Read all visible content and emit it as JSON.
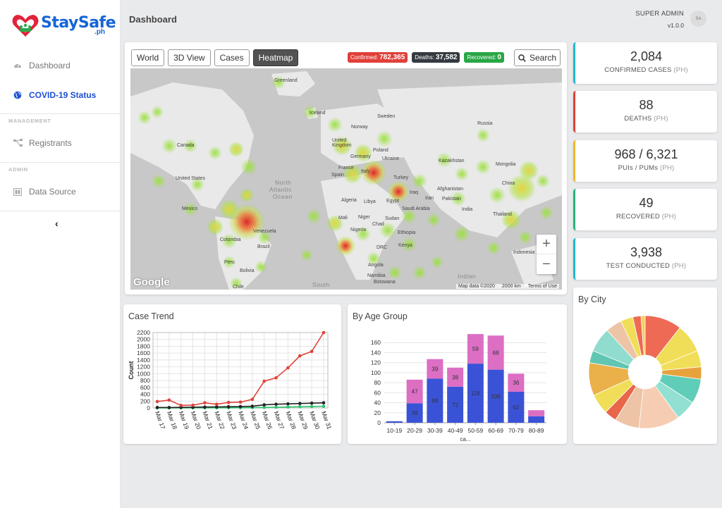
{
  "app": {
    "logo_text": "StaySafe",
    "logo_sub": ".ph",
    "page_title": "Dashboard",
    "user_name": "SUPER ADMIN",
    "version": "v1.0.0",
    "avatar_initials": "SA"
  },
  "sidebar": {
    "items": [
      {
        "label": "Dashboard",
        "icon": "speedometer-icon"
      },
      {
        "label": "COVID-19 Status",
        "icon": "globe-icon"
      }
    ],
    "section_management": "MANAGEMENT",
    "management_items": [
      {
        "label": "Registrants",
        "icon": "network-icon"
      }
    ],
    "section_admin": "ADMIN",
    "admin_items": [
      {
        "label": "Data Source",
        "icon": "database-icon"
      }
    ],
    "collapse_glyph": "‹"
  },
  "map": {
    "tabs": [
      "World",
      "3D View",
      "Cases",
      "Heatmap"
    ],
    "active_tab": "Heatmap",
    "badges": {
      "confirmed_label": "Confirmed:",
      "confirmed_value": "782,365",
      "deaths_label": "Deaths:",
      "deaths_value": "37,582",
      "recovered_label": "Recovered:",
      "recovered_value": "0"
    },
    "search_label": "Search",
    "zoom_in": "+",
    "zoom_out": "−",
    "google_logo": "Google",
    "attribution": "Map data ©2020",
    "scale": "2000 km",
    "terms": "Terms of Use",
    "labels": {
      "greenland": "Greenland",
      "iceland": "Iceland",
      "sweden": "Sweden",
      "norway": "Norway",
      "russia": "Russia",
      "uk": "United Kingdom",
      "poland": "Poland",
      "germany": "Germany",
      "ukraine": "Ukraine",
      "france": "France",
      "italy": "Italy",
      "spain": "Spain",
      "turkey": "Turkey",
      "kazakhstan": "Kazakhstan",
      "mongolia": "Mongolia",
      "canada": "Canada",
      "us": "United States",
      "north_atlantic_1": "North",
      "north_atlantic_2": "Atlantic",
      "north_atlantic_3": "Ocean",
      "china": "China",
      "iraq": "Iraq",
      "iran": "Iran",
      "afghanistan": "Afghanistan",
      "pakistan": "Pakistan",
      "algeria": "Algeria",
      "libya": "Libya",
      "egypt": "Egypt",
      "saudi": "Saudi Arabia",
      "india": "India",
      "mexico": "Mexico",
      "thailand": "Thailand",
      "mali": "Mali",
      "niger": "Niger",
      "sudan": "Sudan",
      "chad": "Chad",
      "venezuela": "Venezuela",
      "colombia": "Colombia",
      "nigeria": "Nigeria",
      "ethiopia": "Ethiopia",
      "drc": "DRC",
      "kenya": "Kenya",
      "indonesia": "Indonesia",
      "peru": "Peru",
      "brazil": "Brazil",
      "angola": "Angola",
      "bolivia": "Bolivia",
      "indian": "Indian",
      "namibia": "Namibia",
      "botswana": "Botswana",
      "chile": "Chile",
      "south": "South"
    }
  },
  "stats": [
    {
      "value": "2,084",
      "label": "CONFIRMED CASES",
      "suffix": "(PH)",
      "color": "#1fb8c9"
    },
    {
      "value": "88",
      "label": "DEATHS",
      "suffix": "(PH)",
      "color": "#e0403a"
    },
    {
      "value": "968 / 6,321",
      "label": "PUIs / PUMs",
      "suffix": "(PH)",
      "color": "#f0b92c"
    },
    {
      "value": "49",
      "label": "RECOVERED",
      "suffix": "(PH)",
      "color": "#28b37a"
    },
    {
      "value": "3,938",
      "label": "TEST CONDUCTED",
      "suffix": "(PH)",
      "color": "#1fb8c9"
    }
  ],
  "chart_data": [
    {
      "type": "line",
      "title": "Case Trend",
      "ylabel": "Count",
      "xlabel": "",
      "categories": [
        "Mar 17",
        "Mar 18",
        "Mar 19",
        "Mar 20",
        "Mar 21",
        "Mar 22",
        "Mar 23",
        "Mar 24",
        "Mar 25",
        "Mar 26",
        "Mar 27",
        "Mar 28",
        "Mar 29",
        "Mar 30",
        "Mar 31"
      ],
      "yticks": [
        0,
        200,
        400,
        600,
        800,
        1000,
        1200,
        1400,
        1600,
        1800,
        2000,
        2200
      ],
      "ylim": [
        0,
        2200
      ],
      "grid": true,
      "series": [
        {
          "color": "#e04238",
          "values": [
            187,
            230,
            75,
            80,
            150,
            110,
            160,
            170,
            250,
            780,
            880,
            1170,
            1520,
            1650,
            2200
          ]
        },
        {
          "color": "#222222",
          "values": [
            14,
            12,
            17,
            20,
            26,
            30,
            35,
            40,
            50,
            92,
            110,
            120,
            130,
            140,
            150
          ]
        },
        {
          "color": "#2fc26e",
          "values": [
            2,
            2,
            2,
            3,
            3,
            3,
            4,
            5,
            10,
            15,
            20,
            28,
            35,
            40,
            49
          ]
        }
      ]
    },
    {
      "type": "bar",
      "title": "By Age Group",
      "stacked": true,
      "categories": [
        "10-19",
        "20-29",
        "30-39",
        "40-49",
        "50-59",
        "60-69",
        "70-79",
        "80-89"
      ],
      "yticks": [
        0,
        20,
        40,
        60,
        80,
        100,
        120,
        140,
        160
      ],
      "ylim": [
        0,
        180
      ],
      "xlabel": "ca...",
      "grid": true,
      "series": [
        {
          "color": "#3a53d6",
          "values": [
            3,
            39,
            88,
            72,
            118,
            106,
            62,
            13
          ]
        },
        {
          "color": "#dc6ec4",
          "values": [
            0,
            47,
            39,
            38,
            59,
            68,
            36,
            12
          ]
        }
      ],
      "labels_bottom": [
        "",
        "39",
        "88",
        "72",
        "118",
        "106",
        "62",
        ""
      ],
      "labels_top": [
        "",
        "47",
        "39",
        "38",
        "59",
        "68",
        "36",
        ""
      ]
    },
    {
      "type": "pie",
      "title": "By City",
      "donut": true,
      "values": [
        9,
        7,
        4,
        3,
        6,
        5,
        10,
        6,
        3,
        5,
        8,
        3,
        6,
        4,
        3,
        2,
        1
      ],
      "colors": [
        "#ee6a55",
        "#f0de58",
        "#f0de58",
        "#e8a23c",
        "#5fcdb8",
        "#91e0d1",
        "#f6ccb2",
        "#eec4a6",
        "#e8664a",
        "#f0de58",
        "#eab04a",
        "#60c6b3",
        "#90dccf",
        "#eec4a6",
        "#f0de58",
        "#ee6a55",
        "#f2d062"
      ]
    }
  ]
}
